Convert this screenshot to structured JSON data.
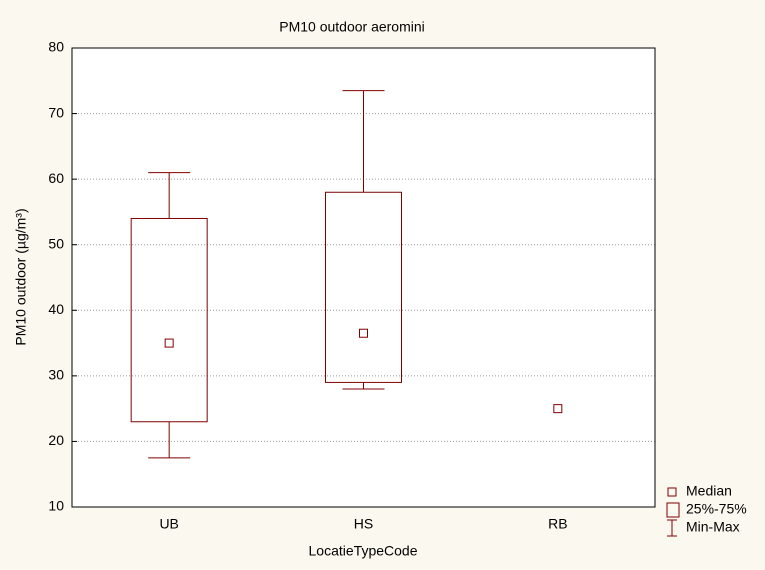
{
  "chart_data": {
    "type": "box",
    "title": "PM10  outdoor aeromini",
    "x_label": "LocatieTypeCode",
    "y_label": "PM10 outdoor (µg/m³)",
    "categories": [
      "UB",
      "HS",
      "RB"
    ],
    "min": [
      17.5,
      28,
      null
    ],
    "q1": [
      23,
      29,
      null
    ],
    "median": [
      35,
      36.5,
      25
    ],
    "q3": [
      54,
      58,
      null
    ],
    "max": [
      61,
      73.5,
      null
    ],
    "color": "#800000",
    "ylim": [
      10,
      80
    ],
    "yticks": [
      10,
      20,
      30,
      40,
      50,
      60,
      70,
      80
    ],
    "grid": true,
    "legend": [
      "Median",
      "25%-75%",
      "Min-Max"
    ],
    "legend_position": "bottom-right"
  }
}
